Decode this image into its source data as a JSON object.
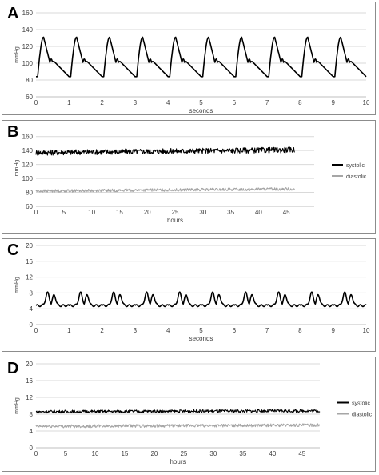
{
  "chart_data": [
    {
      "id": "A",
      "type": "line",
      "letter": "A",
      "title": "",
      "ylabel": "mmHg",
      "xlabel": "seconds",
      "ylim": [
        60,
        160
      ],
      "yticks": [
        60,
        80,
        100,
        120,
        140,
        160
      ],
      "xlim": [
        0,
        10
      ],
      "xticks": [
        0,
        1,
        2,
        3,
        4,
        5,
        6,
        7,
        8,
        9,
        10
      ],
      "grid": true,
      "legend": "none",
      "series": [
        {
          "color": "#000000",
          "waveform": "arterial",
          "period_s": 1.0,
          "phase_s": 0.0,
          "systolic": 131,
          "diastolic": 84,
          "notch": 104
        }
      ]
    },
    {
      "id": "B",
      "type": "line",
      "letter": "B",
      "title": "",
      "ylabel": "mmHg",
      "xlabel": "hours",
      "ylim": [
        60,
        170
      ],
      "yticks": [
        60,
        80,
        100,
        120,
        140,
        160
      ],
      "xlim": [
        0,
        50
      ],
      "xticks": [
        0,
        5,
        10,
        15,
        20,
        25,
        30,
        35,
        40,
        45
      ],
      "grid": true,
      "legend": "right",
      "series": [
        {
          "name": "systolic",
          "color": "#000000",
          "mean_start": 137,
          "mean_end": 141,
          "noise": 4,
          "x_end": 46.5
        },
        {
          "name": "diastolic",
          "color": "#a6a6a6",
          "mean_start": 82,
          "mean_end": 85,
          "noise": 2,
          "x_end": 46.5
        }
      ]
    },
    {
      "id": "C",
      "type": "line",
      "letter": "C",
      "title": "",
      "ylabel": "mmHg",
      "xlabel": "seconds",
      "ylim": [
        0,
        20
      ],
      "yticks": [
        0,
        4,
        8,
        12,
        16,
        20
      ],
      "xlim": [
        0,
        10
      ],
      "xticks": [
        0,
        1,
        2,
        3,
        4,
        5,
        6,
        7,
        8,
        9,
        10
      ],
      "grid": true,
      "legend": "none",
      "series": [
        {
          "color": "#000000",
          "waveform": "venous",
          "period_s": 1.0,
          "phase_s": 0.0,
          "peak": 8,
          "trough": 4.8
        }
      ]
    },
    {
      "id": "D",
      "type": "line",
      "letter": "D",
      "title": "",
      "ylabel": "mmHg",
      "xlabel": "hours",
      "ylim": [
        0,
        20
      ],
      "yticks": [
        0,
        4,
        8,
        12,
        16,
        20
      ],
      "xlim": [
        0,
        48
      ],
      "xticks": [
        0,
        5,
        10,
        15,
        20,
        25,
        30,
        35,
        40,
        45
      ],
      "grid": true,
      "legend": "right",
      "series": [
        {
          "name": "systolic",
          "color": "#000000",
          "mean_start": 8.6,
          "mean_end": 8.8,
          "noise": 0.35,
          "x_end": 48
        },
        {
          "name": "diastolic",
          "color": "#a6a6a6",
          "mean_start": 5.1,
          "mean_end": 5.4,
          "noise": 0.35,
          "x_end": 48
        }
      ]
    }
  ]
}
